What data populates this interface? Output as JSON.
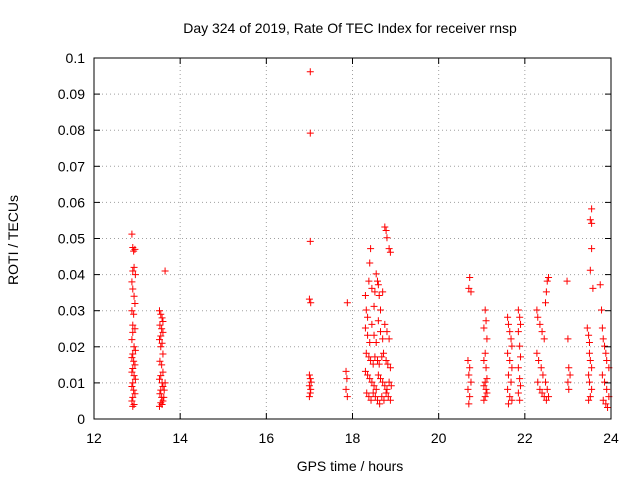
{
  "chart_data": {
    "type": "scatter",
    "title": "Day 324 of 2019, Rate Of TEC Index for receiver rnsp",
    "xlabel": "GPS time / hours",
    "ylabel": "ROTI / TECUs",
    "xlim": [
      12,
      24
    ],
    "ylim": [
      0,
      0.1
    ],
    "xticks": [
      12,
      14,
      16,
      18,
      20,
      22,
      24
    ],
    "xtick_labels": [
      "12",
      "14",
      "16",
      "18",
      "20",
      "22",
      "24"
    ],
    "yticks": [
      0,
      0.01,
      0.02,
      0.03,
      0.04,
      0.05,
      0.06,
      0.07,
      0.08,
      0.09,
      0.1
    ],
    "ytick_labels": [
      "0",
      "0.01",
      "0.02",
      "0.03",
      "0.04",
      "0.05",
      "0.06",
      "0.07",
      "0.08",
      "0.09",
      "0.1"
    ],
    "grid": true,
    "marker": "+",
    "series": [
      {
        "name": "ROTI",
        "color": "#ff0000",
        "points": [
          [
            12.88,
            0.0512
          ],
          [
            12.9,
            0.0475
          ],
          [
            12.92,
            0.0465
          ],
          [
            12.95,
            0.047
          ],
          [
            12.93,
            0.042
          ],
          [
            12.9,
            0.041
          ],
          [
            12.96,
            0.04
          ],
          [
            12.88,
            0.038
          ],
          [
            12.9,
            0.036
          ],
          [
            12.93,
            0.034
          ],
          [
            12.95,
            0.032
          ],
          [
            12.88,
            0.03
          ],
          [
            12.92,
            0.029
          ],
          [
            12.9,
            0.026
          ],
          [
            12.95,
            0.025
          ],
          [
            12.9,
            0.024
          ],
          [
            12.88,
            0.022
          ],
          [
            12.93,
            0.02
          ],
          [
            12.96,
            0.019
          ],
          [
            12.9,
            0.018
          ],
          [
            12.88,
            0.017
          ],
          [
            12.92,
            0.016
          ],
          [
            12.95,
            0.015
          ],
          [
            12.9,
            0.014
          ],
          [
            12.88,
            0.013
          ],
          [
            12.93,
            0.012
          ],
          [
            12.96,
            0.011
          ],
          [
            12.9,
            0.01
          ],
          [
            12.88,
            0.009
          ],
          [
            12.92,
            0.008
          ],
          [
            12.95,
            0.007
          ],
          [
            12.9,
            0.006
          ],
          [
            12.88,
            0.005
          ],
          [
            12.93,
            0.004
          ],
          [
            12.9,
            0.0035
          ],
          [
            13.52,
            0.03
          ],
          [
            13.55,
            0.029
          ],
          [
            13.58,
            0.028
          ],
          [
            13.6,
            0.027
          ],
          [
            13.53,
            0.026
          ],
          [
            13.57,
            0.025
          ],
          [
            13.6,
            0.024
          ],
          [
            13.55,
            0.023
          ],
          [
            13.52,
            0.022
          ],
          [
            13.58,
            0.021
          ],
          [
            13.65,
            0.041
          ],
          [
            13.55,
            0.02
          ],
          [
            13.6,
            0.018
          ],
          [
            13.53,
            0.016
          ],
          [
            13.57,
            0.015
          ],
          [
            13.6,
            0.013
          ],
          [
            13.55,
            0.012
          ],
          [
            13.52,
            0.011
          ],
          [
            13.58,
            0.01
          ],
          [
            13.6,
            0.009
          ],
          [
            13.55,
            0.008
          ],
          [
            13.53,
            0.007
          ],
          [
            13.57,
            0.006
          ],
          [
            13.6,
            0.005
          ],
          [
            13.55,
            0.0045
          ],
          [
            13.58,
            0.004
          ],
          [
            13.52,
            0.0035
          ],
          [
            13.65,
            0.01
          ],
          [
            13.63,
            0.008
          ],
          [
            13.62,
            0.006
          ],
          [
            17.02,
            0.0962
          ],
          [
            17.02,
            0.0792
          ],
          [
            17.02,
            0.0492
          ],
          [
            17.0,
            0.0332
          ],
          [
            17.03,
            0.0322
          ],
          [
            17.0,
            0.0122
          ],
          [
            17.02,
            0.0112
          ],
          [
            17.04,
            0.0102
          ],
          [
            17.0,
            0.0092
          ],
          [
            17.03,
            0.0082
          ],
          [
            17.02,
            0.0072
          ],
          [
            17.0,
            0.0062
          ],
          [
            17.88,
            0.0322
          ],
          [
            17.85,
            0.0132
          ],
          [
            17.87,
            0.0112
          ],
          [
            17.85,
            0.0082
          ],
          [
            17.88,
            0.0062
          ],
          [
            18.3,
            0.0342
          ],
          [
            18.32,
            0.0302
          ],
          [
            18.35,
            0.0282
          ],
          [
            18.38,
            0.0382
          ],
          [
            18.4,
            0.0432
          ],
          [
            18.42,
            0.0472
          ],
          [
            18.45,
            0.0362
          ],
          [
            18.5,
            0.0312
          ],
          [
            18.52,
            0.0352
          ],
          [
            18.55,
            0.0402
          ],
          [
            18.58,
            0.0382
          ],
          [
            18.6,
            0.0372
          ],
          [
            18.62,
            0.0342
          ],
          [
            18.65,
            0.0302
          ],
          [
            18.7,
            0.0352
          ],
          [
            18.75,
            0.0532
          ],
          [
            18.78,
            0.0522
          ],
          [
            18.8,
            0.0502
          ],
          [
            18.85,
            0.0472
          ],
          [
            18.88,
            0.0462
          ],
          [
            18.3,
            0.0252
          ],
          [
            18.35,
            0.0232
          ],
          [
            18.4,
            0.0212
          ],
          [
            18.45,
            0.0262
          ],
          [
            18.5,
            0.0232
          ],
          [
            18.55,
            0.0212
          ],
          [
            18.6,
            0.0272
          ],
          [
            18.65,
            0.0242
          ],
          [
            18.7,
            0.0222
          ],
          [
            18.75,
            0.0262
          ],
          [
            18.8,
            0.0242
          ],
          [
            18.85,
            0.0222
          ],
          [
            18.32,
            0.0182
          ],
          [
            18.38,
            0.0172
          ],
          [
            18.42,
            0.0162
          ],
          [
            18.48,
            0.0152
          ],
          [
            18.52,
            0.0172
          ],
          [
            18.58,
            0.0162
          ],
          [
            18.62,
            0.0152
          ],
          [
            18.68,
            0.0172
          ],
          [
            18.72,
            0.0182
          ],
          [
            18.78,
            0.0162
          ],
          [
            18.82,
            0.0152
          ],
          [
            18.88,
            0.0142
          ],
          [
            18.3,
            0.0132
          ],
          [
            18.35,
            0.0122
          ],
          [
            18.4,
            0.0112
          ],
          [
            18.45,
            0.0102
          ],
          [
            18.5,
            0.0092
          ],
          [
            18.55,
            0.0082
          ],
          [
            18.6,
            0.0122
          ],
          [
            18.65,
            0.0112
          ],
          [
            18.7,
            0.0102
          ],
          [
            18.75,
            0.0092
          ],
          [
            18.8,
            0.0082
          ],
          [
            18.85,
            0.0102
          ],
          [
            18.9,
            0.0092
          ],
          [
            18.33,
            0.0072
          ],
          [
            18.38,
            0.0062
          ],
          [
            18.43,
            0.0052
          ],
          [
            18.48,
            0.0072
          ],
          [
            18.53,
            0.0062
          ],
          [
            18.58,
            0.0052
          ],
          [
            18.63,
            0.0042
          ],
          [
            18.68,
            0.0062
          ],
          [
            18.73,
            0.0052
          ],
          [
            18.78,
            0.0072
          ],
          [
            18.83,
            0.0062
          ],
          [
            18.88,
            0.0052
          ],
          [
            20.72,
            0.0392
          ],
          [
            20.7,
            0.0362
          ],
          [
            20.75,
            0.0352
          ],
          [
            20.68,
            0.0162
          ],
          [
            20.72,
            0.0142
          ],
          [
            20.7,
            0.0122
          ],
          [
            20.75,
            0.0102
          ],
          [
            20.68,
            0.0082
          ],
          [
            20.72,
            0.0062
          ],
          [
            20.7,
            0.0042
          ],
          [
            21.08,
            0.0302
          ],
          [
            21.1,
            0.0272
          ],
          [
            21.05,
            0.0252
          ],
          [
            21.12,
            0.0222
          ],
          [
            21.08,
            0.0182
          ],
          [
            21.05,
            0.0162
          ],
          [
            21.1,
            0.0142
          ],
          [
            21.12,
            0.0112
          ],
          [
            21.08,
            0.0102
          ],
          [
            21.05,
            0.0092
          ],
          [
            21.1,
            0.0082
          ],
          [
            21.12,
            0.0072
          ],
          [
            21.08,
            0.0062
          ],
          [
            21.05,
            0.0052
          ],
          [
            21.6,
            0.0282
          ],
          [
            21.62,
            0.0262
          ],
          [
            21.65,
            0.0242
          ],
          [
            21.68,
            0.0222
          ],
          [
            21.7,
            0.0202
          ],
          [
            21.6,
            0.0182
          ],
          [
            21.65,
            0.0162
          ],
          [
            21.7,
            0.0142
          ],
          [
            21.62,
            0.0122
          ],
          [
            21.68,
            0.0102
          ],
          [
            21.6,
            0.0082
          ],
          [
            21.65,
            0.0062
          ],
          [
            21.7,
            0.0052
          ],
          [
            21.62,
            0.0042
          ],
          [
            21.85,
            0.0302
          ],
          [
            21.88,
            0.0282
          ],
          [
            21.9,
            0.0262
          ],
          [
            21.85,
            0.0242
          ],
          [
            21.88,
            0.0202
          ],
          [
            21.9,
            0.0172
          ],
          [
            21.85,
            0.0142
          ],
          [
            21.88,
            0.0112
          ],
          [
            21.9,
            0.0092
          ],
          [
            21.85,
            0.0072
          ],
          [
            21.88,
            0.0052
          ],
          [
            22.28,
            0.0302
          ],
          [
            22.3,
            0.0282
          ],
          [
            22.35,
            0.0262
          ],
          [
            22.4,
            0.0242
          ],
          [
            22.45,
            0.0222
          ],
          [
            22.5,
            0.0352
          ],
          [
            22.52,
            0.0382
          ],
          [
            22.55,
            0.0392
          ],
          [
            22.48,
            0.0322
          ],
          [
            22.28,
            0.0182
          ],
          [
            22.32,
            0.0162
          ],
          [
            22.38,
            0.0142
          ],
          [
            22.42,
            0.0122
          ],
          [
            22.48,
            0.0102
          ],
          [
            22.52,
            0.0082
          ],
          [
            22.55,
            0.0062
          ],
          [
            22.3,
            0.0102
          ],
          [
            22.35,
            0.0082
          ],
          [
            22.4,
            0.0072
          ],
          [
            22.45,
            0.0062
          ],
          [
            22.5,
            0.0052
          ],
          [
            22.98,
            0.0382
          ],
          [
            23.0,
            0.0222
          ],
          [
            23.02,
            0.0142
          ],
          [
            23.05,
            0.0122
          ],
          [
            23.0,
            0.0102
          ],
          [
            23.02,
            0.0082
          ],
          [
            23.45,
            0.0252
          ],
          [
            23.48,
            0.0232
          ],
          [
            23.5,
            0.0212
          ],
          [
            23.52,
            0.0552
          ],
          [
            23.55,
            0.0582
          ],
          [
            23.55,
            0.0542
          ],
          [
            23.55,
            0.0472
          ],
          [
            23.52,
            0.0412
          ],
          [
            23.58,
            0.0362
          ],
          [
            23.5,
            0.0182
          ],
          [
            23.52,
            0.0162
          ],
          [
            23.55,
            0.0142
          ],
          [
            23.48,
            0.0122
          ],
          [
            23.5,
            0.0102
          ],
          [
            23.55,
            0.0082
          ],
          [
            23.52,
            0.0062
          ],
          [
            23.48,
            0.0052
          ],
          [
            23.75,
            0.0372
          ],
          [
            23.78,
            0.0302
          ],
          [
            23.8,
            0.0252
          ],
          [
            23.82,
            0.0222
          ],
          [
            23.85,
            0.0202
          ],
          [
            23.88,
            0.0182
          ],
          [
            23.9,
            0.0162
          ],
          [
            23.95,
            0.0142
          ],
          [
            23.8,
            0.0122
          ],
          [
            23.85,
            0.0102
          ],
          [
            23.9,
            0.0082
          ],
          [
            23.95,
            0.0062
          ],
          [
            23.82,
            0.0052
          ],
          [
            23.88,
            0.0042
          ],
          [
            23.92,
            0.0032
          ]
        ]
      }
    ]
  }
}
